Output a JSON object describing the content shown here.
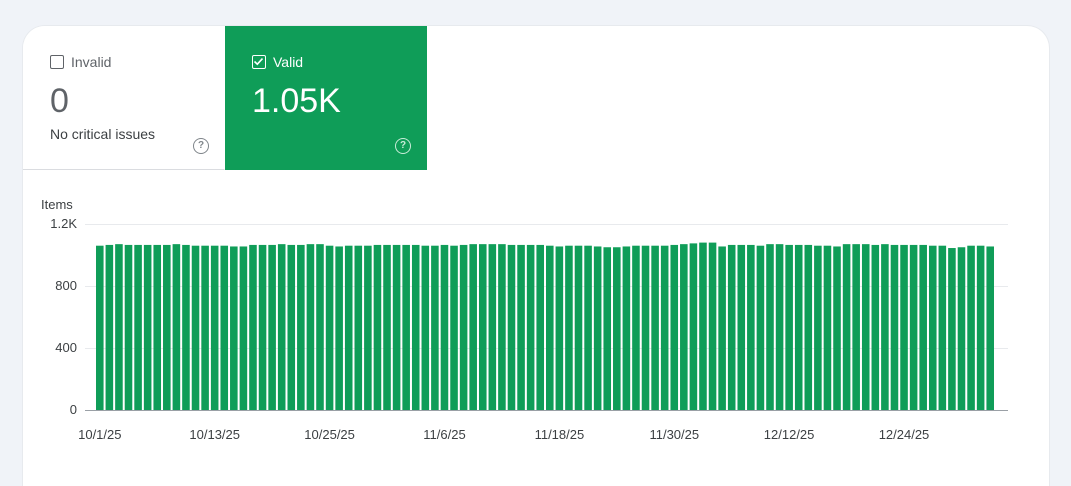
{
  "tiles": {
    "invalid": {
      "label": "Invalid",
      "value": "0",
      "subtitle": "No critical issues",
      "checked": false,
      "help_icon": "question-circle-icon"
    },
    "valid": {
      "label": "Valid",
      "value": "1.05K",
      "checked": true,
      "help_icon": "question-circle-icon",
      "color": "#0f9d58"
    }
  },
  "chart_data": {
    "type": "bar",
    "ylabel": "Items",
    "ylim": [
      0,
      1200
    ],
    "yticks": [
      0,
      400,
      800,
      1200
    ],
    "ytick_labels": [
      "0",
      "400",
      "800",
      "1.2K"
    ],
    "grid": true,
    "bar_color": "#0f9d58",
    "x_tick_labels": [
      "10/1/25",
      "10/13/25",
      "10/25/25",
      "11/6/25",
      "11/18/25",
      "11/30/25",
      "12/12/25",
      "12/24/25"
    ],
    "x_tick_dates": [
      "2025-10-01",
      "2025-10-13",
      "2025-10-25",
      "2025-11-06",
      "2025-11-18",
      "2025-11-30",
      "2025-12-12",
      "2025-12-24"
    ],
    "start_date": "2025-10-01",
    "values": [
      1060,
      1065,
      1070,
      1065,
      1065,
      1065,
      1065,
      1065,
      1070,
      1065,
      1060,
      1060,
      1060,
      1060,
      1055,
      1055,
      1065,
      1065,
      1065,
      1070,
      1065,
      1065,
      1070,
      1070,
      1060,
      1055,
      1060,
      1060,
      1060,
      1065,
      1065,
      1065,
      1065,
      1065,
      1060,
      1060,
      1065,
      1060,
      1065,
      1070,
      1070,
      1070,
      1070,
      1065,
      1065,
      1065,
      1065,
      1060,
      1055,
      1060,
      1060,
      1060,
      1055,
      1050,
      1050,
      1055,
      1060,
      1060,
      1060,
      1060,
      1065,
      1070,
      1075,
      1080,
      1080,
      1055,
      1065,
      1065,
      1065,
      1060,
      1070,
      1070,
      1065,
      1065,
      1065,
      1060,
      1060,
      1055,
      1070,
      1070,
      1070,
      1065,
      1070,
      1065,
      1065,
      1065,
      1065,
      1060,
      1060,
      1045,
      1050,
      1060,
      1060,
      1055
    ]
  }
}
